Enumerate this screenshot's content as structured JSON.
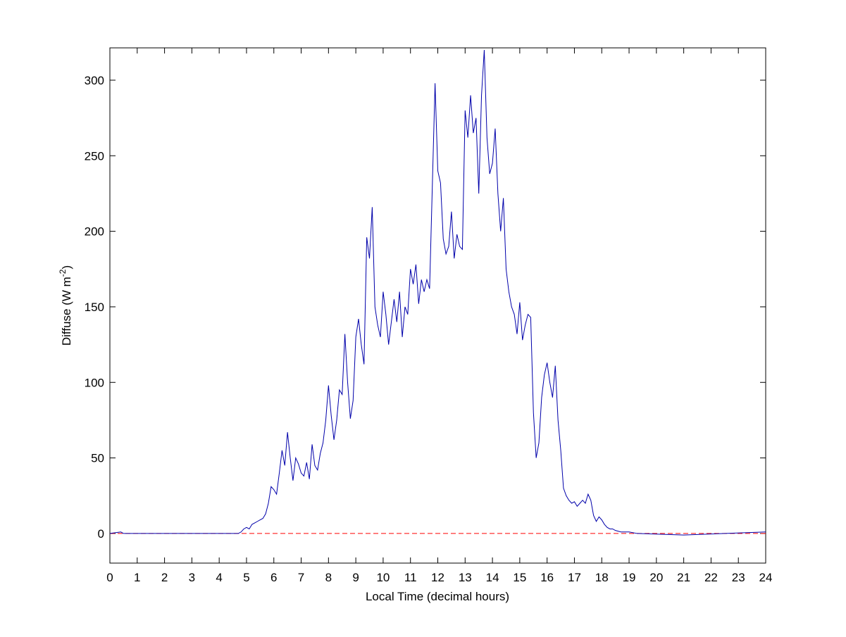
{
  "chart_data": {
    "type": "line",
    "xlabel": "Local Time (decimal hours)",
    "ylabel": {
      "text": "Diffuse (W m",
      "superscript": "-2",
      "suffix": ")"
    },
    "x": [
      0,
      0.4,
      0.5,
      4.5,
      4.7,
      4.8,
      4.9,
      5.0,
      5.1,
      5.2,
      5.3,
      5.4,
      5.5,
      5.6,
      5.7,
      5.8,
      5.9,
      6.0,
      6.1,
      6.2,
      6.3,
      6.4,
      6.5,
      6.6,
      6.7,
      6.8,
      6.9,
      7.0,
      7.1,
      7.2,
      7.3,
      7.4,
      7.5,
      7.6,
      7.7,
      7.8,
      7.9,
      8.0,
      8.1,
      8.2,
      8.3,
      8.4,
      8.5,
      8.6,
      8.7,
      8.8,
      8.9,
      9.0,
      9.1,
      9.2,
      9.3,
      9.4,
      9.5,
      9.6,
      9.7,
      9.8,
      9.9,
      10.0,
      10.1,
      10.2,
      10.3,
      10.4,
      10.5,
      10.6,
      10.7,
      10.8,
      10.9,
      11.0,
      11.1,
      11.2,
      11.3,
      11.4,
      11.5,
      11.6,
      11.7,
      11.8,
      11.9,
      12.0,
      12.1,
      12.2,
      12.3,
      12.4,
      12.5,
      12.6,
      12.7,
      12.8,
      12.9,
      13.0,
      13.1,
      13.2,
      13.3,
      13.4,
      13.5,
      13.6,
      13.7,
      13.8,
      13.9,
      14.0,
      14.1,
      14.2,
      14.3,
      14.4,
      14.5,
      14.6,
      14.7,
      14.8,
      14.9,
      15.0,
      15.1,
      15.2,
      15.3,
      15.4,
      15.5,
      15.6,
      15.7,
      15.8,
      15.9,
      16.0,
      16.1,
      16.2,
      16.3,
      16.4,
      16.5,
      16.6,
      16.7,
      16.8,
      16.9,
      17.0,
      17.1,
      17.2,
      17.3,
      17.4,
      17.5,
      17.6,
      17.7,
      17.8,
      17.9,
      18.0,
      18.1,
      18.2,
      18.3,
      18.4,
      18.5,
      18.7,
      19.0,
      19.3,
      21,
      24
    ],
    "series": [
      {
        "color": "#0000aa",
        "values": [
          0,
          1,
          0,
          0,
          0,
          1,
          3,
          4,
          3,
          6,
          7,
          8,
          9,
          10,
          13,
          20,
          31,
          29,
          26,
          40,
          55,
          45,
          67,
          50,
          35,
          50,
          46,
          40,
          38,
          47,
          36,
          59,
          45,
          42,
          53,
          60,
          75,
          98,
          78,
          62,
          75,
          95,
          92,
          132,
          100,
          76,
          88,
          130,
          142,
          125,
          112,
          196,
          182,
          216,
          150,
          138,
          130,
          160,
          145,
          125,
          140,
          155,
          140,
          160,
          130,
          150,
          145,
          175,
          165,
          178,
          152,
          168,
          160,
          168,
          162,
          230,
          298,
          240,
          232,
          195,
          185,
          190,
          213,
          182,
          198,
          190,
          188,
          280,
          262,
          290,
          265,
          275,
          225,
          290,
          320,
          262,
          238,
          245,
          268,
          225,
          200,
          222,
          175,
          160,
          150,
          145,
          132,
          153,
          128,
          138,
          145,
          143,
          80,
          50,
          60,
          90,
          105,
          113,
          100,
          90,
          111,
          75,
          55,
          30,
          25,
          22,
          20,
          21,
          18,
          20,
          22,
          20,
          26,
          22,
          12,
          8,
          11,
          9,
          6,
          4,
          3,
          3,
          2,
          1,
          1,
          0,
          -1,
          1
        ]
      }
    ],
    "reference_line": {
      "y": 0,
      "color": "#ff0000"
    },
    "xlim": [
      0,
      24
    ],
    "ylim": [
      -19.6,
      321.4
    ],
    "xticks": [
      0,
      1,
      2,
      3,
      4,
      5,
      6,
      7,
      8,
      9,
      10,
      11,
      12,
      13,
      14,
      15,
      16,
      17,
      18,
      19,
      20,
      21,
      22,
      23,
      24
    ],
    "yticks": [
      0,
      50,
      100,
      150,
      200,
      250,
      300
    ]
  }
}
